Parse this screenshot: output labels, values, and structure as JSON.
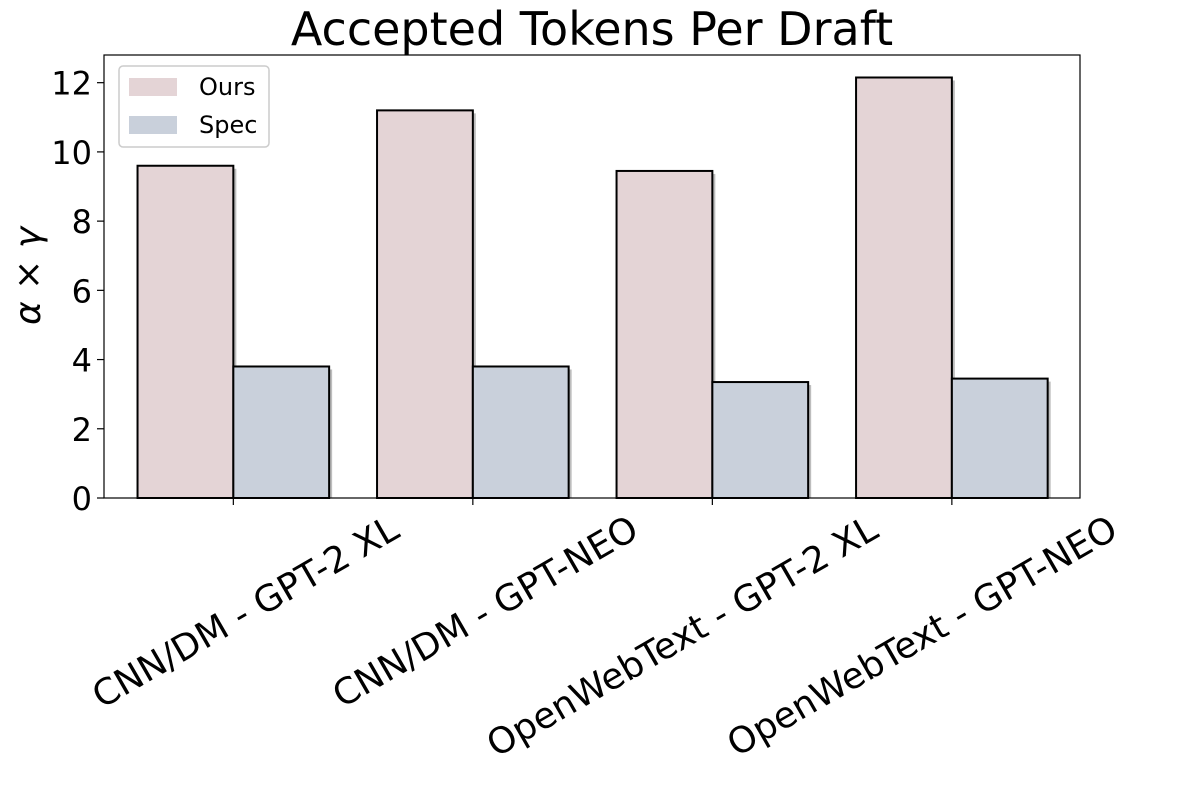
{
  "chart_data": {
    "type": "bar",
    "title": "Accepted Tokens Per Draft",
    "xlabel": "",
    "ylabel": "α × γ",
    "categories": [
      "CNN/DM - GPT-2 XL",
      "CNN/DM - GPT-NEO",
      "OpenWebText - GPT-2 XL",
      "OpenWebText - GPT-NEO"
    ],
    "series": [
      {
        "name": "Ours",
        "values": [
          9.6,
          11.2,
          9.45,
          12.15
        ],
        "color": "#e4d4d6"
      },
      {
        "name": "Spec",
        "values": [
          3.8,
          3.8,
          3.35,
          3.45
        ],
        "color": "#c9d0db"
      }
    ],
    "ylim": [
      0,
      12.8
    ],
    "yticks": [
      "0",
      "2",
      "4",
      "6",
      "8",
      "10",
      "12"
    ],
    "legend": "top-left",
    "grid": false
  }
}
